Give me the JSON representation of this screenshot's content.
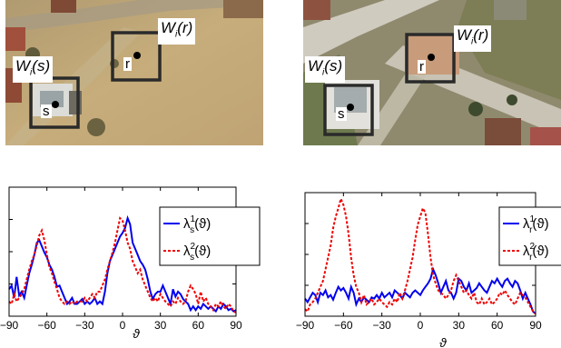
{
  "images": [
    {
      "window_labels": {
        "r": "W",
        "r_sub": "i",
        "r_arg": "(r)",
        "s": "W",
        "s_sub": "i",
        "s_arg": "(s)"
      },
      "points": {
        "r": "r",
        "s": "s"
      }
    },
    {
      "window_labels": {
        "r": "W",
        "r_sub": "i",
        "r_arg": "(r)",
        "s": "W",
        "s_sub": "i",
        "s_arg": "(s)"
      },
      "points": {
        "r": "r",
        "s": "s"
      }
    }
  ],
  "chart_data": [
    {
      "type": "line",
      "xlabel": "ϑ",
      "xlim": [
        -90,
        90
      ],
      "ylim": [
        0,
        1
      ],
      "x_ticks": [
        "−90",
        "−60",
        "−30",
        "0",
        "30",
        "60",
        "90"
      ],
      "x_tick_values": [
        -90,
        -60,
        -30,
        0,
        30,
        60,
        90
      ],
      "legend_position": "top-right",
      "series": [
        {
          "name": "λs1(ϑ)",
          "legend_base": "λ",
          "legend_sub": "s",
          "legend_sup": "1",
          "legend_arg": "(ϑ)",
          "color": "#0000ee",
          "style": "solid",
          "x": [
            -90,
            -88,
            -86,
            -84,
            -82,
            -80,
            -78,
            -76,
            -74,
            -72,
            -70,
            -68,
            -66,
            -64,
            -62,
            -60,
            -58,
            -56,
            -54,
            -52,
            -50,
            -48,
            -46,
            -44,
            -42,
            -40,
            -38,
            -36,
            -34,
            -32,
            -30,
            -28,
            -26,
            -24,
            -22,
            -20,
            -18,
            -16,
            -14,
            -12,
            -10,
            -8,
            -6,
            -4,
            -2,
            0,
            2,
            4,
            6,
            8,
            10,
            12,
            14,
            16,
            18,
            20,
            22,
            24,
            26,
            28,
            30,
            32,
            34,
            36,
            38,
            40,
            42,
            44,
            46,
            48,
            50,
            52,
            54,
            56,
            58,
            60,
            62,
            64,
            66,
            68,
            70,
            72,
            74,
            76,
            78,
            80,
            82,
            84,
            86,
            88,
            90
          ],
          "y": [
            0.22,
            0.25,
            0.15,
            0.32,
            0.17,
            0.2,
            0.15,
            0.25,
            0.35,
            0.42,
            0.5,
            0.6,
            0.62,
            0.57,
            0.52,
            0.48,
            0.42,
            0.38,
            0.32,
            0.24,
            0.25,
            0.2,
            0.15,
            0.1,
            0.12,
            0.15,
            0.1,
            0.1,
            0.12,
            0.14,
            0.1,
            0.12,
            0.1,
            0.12,
            0.15,
            0.1,
            0.12,
            0.1,
            0.2,
            0.35,
            0.45,
            0.5,
            0.55,
            0.6,
            0.65,
            0.68,
            0.72,
            0.8,
            0.75,
            0.6,
            0.55,
            0.5,
            0.45,
            0.42,
            0.38,
            0.3,
            0.2,
            0.14,
            0.18,
            0.2,
            0.2,
            0.25,
            0.2,
            0.15,
            0.1,
            0.22,
            0.16,
            0.2,
            0.18,
            0.14,
            0.12,
            0.1,
            0.05,
            0.08,
            0.05,
            0.08,
            0.06,
            0.1,
            0.08,
            0.06,
            0.08,
            0.06,
            0.04,
            0.08,
            0.06,
            0.1,
            0.08,
            0.05,
            0.06,
            0.04,
            0.05
          ]
        },
        {
          "name": "λs2(ϑ)",
          "legend_base": "λ",
          "legend_sub": "s",
          "legend_sup": "2",
          "legend_arg": "(ϑ)",
          "color": "#ee0000",
          "style": "dotted",
          "x": [
            -90,
            -88,
            -86,
            -84,
            -82,
            -80,
            -78,
            -76,
            -74,
            -72,
            -70,
            -68,
            -66,
            -64,
            -62,
            -60,
            -58,
            -56,
            -54,
            -52,
            -50,
            -48,
            -46,
            -44,
            -42,
            -40,
            -38,
            -36,
            -34,
            -32,
            -30,
            -28,
            -26,
            -24,
            -22,
            -20,
            -18,
            -16,
            -14,
            -12,
            -10,
            -8,
            -6,
            -4,
            -2,
            0,
            2,
            4,
            6,
            8,
            10,
            12,
            14,
            16,
            18,
            20,
            22,
            24,
            26,
            28,
            30,
            32,
            34,
            36,
            38,
            40,
            42,
            44,
            46,
            48,
            50,
            52,
            54,
            56,
            58,
            60,
            62,
            64,
            66,
            68,
            70,
            72,
            74,
            76,
            78,
            80,
            82,
            84,
            86,
            88,
            90
          ],
          "y": [
            0.12,
            0.1,
            0.18,
            0.12,
            0.15,
            0.18,
            0.22,
            0.3,
            0.38,
            0.45,
            0.5,
            0.58,
            0.66,
            0.7,
            0.62,
            0.5,
            0.4,
            0.35,
            0.28,
            0.22,
            0.15,
            0.12,
            0.1,
            0.12,
            0.1,
            0.12,
            0.1,
            0.12,
            0.12,
            0.12,
            0.15,
            0.12,
            0.15,
            0.18,
            0.15,
            0.2,
            0.2,
            0.25,
            0.3,
            0.38,
            0.45,
            0.52,
            0.6,
            0.7,
            0.8,
            0.78,
            0.7,
            0.6,
            0.55,
            0.45,
            0.4,
            0.35,
            0.38,
            0.3,
            0.25,
            0.2,
            0.15,
            0.12,
            0.15,
            0.12,
            0.18,
            0.15,
            0.12,
            0.1,
            0.08,
            0.12,
            0.1,
            0.15,
            0.12,
            0.1,
            0.12,
            0.2,
            0.25,
            0.22,
            0.18,
            0.1,
            0.2,
            0.12,
            0.15,
            0.1,
            0.08,
            0.05,
            0.1,
            0.08,
            0.12,
            0.08,
            0.06,
            0.1,
            0.08,
            0.04,
            0.03
          ]
        }
      ]
    },
    {
      "type": "line",
      "xlabel": "ϑ",
      "xlim": [
        -90,
        90
      ],
      "ylim": [
        0,
        1
      ],
      "x_ticks": [
        "−90",
        "−60",
        "−30",
        "0",
        "30",
        "60",
        "90"
      ],
      "x_tick_values": [
        -90,
        -60,
        -30,
        0,
        30,
        60,
        90
      ],
      "legend_position": "top-right",
      "series": [
        {
          "name": "λr1(ϑ)",
          "legend_base": "λ",
          "legend_sub": "r",
          "legend_sup": "1",
          "legend_arg": "(ϑ)",
          "color": "#0000ee",
          "style": "solid",
          "x": [
            -90,
            -88,
            -86,
            -84,
            -82,
            -80,
            -78,
            -76,
            -74,
            -72,
            -70,
            -68,
            -66,
            -64,
            -62,
            -60,
            -58,
            -56,
            -54,
            -52,
            -50,
            -48,
            -46,
            -44,
            -42,
            -40,
            -38,
            -36,
            -34,
            -32,
            -30,
            -28,
            -26,
            -24,
            -22,
            -20,
            -18,
            -16,
            -14,
            -12,
            -10,
            -8,
            -6,
            -4,
            -2,
            0,
            2,
            4,
            6,
            8,
            10,
            12,
            14,
            16,
            18,
            20,
            22,
            24,
            26,
            28,
            30,
            32,
            34,
            36,
            38,
            40,
            42,
            44,
            46,
            48,
            50,
            52,
            54,
            56,
            58,
            60,
            62,
            64,
            66,
            68,
            70,
            72,
            74,
            76,
            78,
            80,
            82,
            84,
            86,
            88,
            90
          ],
          "y": [
            0.15,
            0.12,
            0.16,
            0.2,
            0.18,
            0.12,
            0.2,
            0.18,
            0.22,
            0.16,
            0.18,
            0.14,
            0.2,
            0.25,
            0.22,
            0.24,
            0.2,
            0.15,
            0.25,
            0.2,
            0.1,
            0.15,
            0.12,
            0.16,
            0.14,
            0.12,
            0.16,
            0.15,
            0.18,
            0.15,
            0.2,
            0.16,
            0.18,
            0.2,
            0.16,
            0.22,
            0.2,
            0.18,
            0.15,
            0.2,
            0.18,
            0.16,
            0.2,
            0.22,
            0.2,
            0.18,
            0.22,
            0.25,
            0.28,
            0.32,
            0.4,
            0.35,
            0.28,
            0.2,
            0.25,
            0.3,
            0.22,
            0.2,
            0.15,
            0.2,
            0.32,
            0.3,
            0.25,
            0.22,
            0.28,
            0.2,
            0.22,
            0.24,
            0.28,
            0.25,
            0.22,
            0.2,
            0.25,
            0.3,
            0.28,
            0.32,
            0.28,
            0.25,
            0.3,
            0.32,
            0.28,
            0.25,
            0.3,
            0.28,
            0.22,
            0.15,
            0.2,
            0.15,
            0.1,
            0.04,
            0.02
          ]
        },
        {
          "name": "λr2(ϑ)",
          "legend_base": "λ",
          "legend_sub": "r",
          "legend_sup": "2",
          "legend_arg": "(ϑ)",
          "color": "#ee0000",
          "style": "dotted",
          "x": [
            -90,
            -88,
            -86,
            -84,
            -82,
            -80,
            -78,
            -76,
            -74,
            -72,
            -70,
            -68,
            -66,
            -64,
            -62,
            -60,
            -58,
            -56,
            -54,
            -52,
            -50,
            -48,
            -46,
            -44,
            -42,
            -40,
            -38,
            -36,
            -34,
            -32,
            -30,
            -28,
            -26,
            -24,
            -22,
            -20,
            -18,
            -16,
            -14,
            -12,
            -10,
            -8,
            -6,
            -4,
            -2,
            0,
            2,
            4,
            6,
            8,
            10,
            12,
            14,
            16,
            18,
            20,
            22,
            24,
            26,
            28,
            30,
            32,
            34,
            36,
            38,
            40,
            42,
            44,
            46,
            48,
            50,
            52,
            54,
            56,
            58,
            60,
            62,
            64,
            66,
            68,
            70,
            72,
            74,
            76,
            78,
            80,
            82,
            84,
            86,
            88,
            90
          ],
          "y": [
            0.06,
            0.04,
            0.1,
            0.12,
            0.15,
            0.2,
            0.25,
            0.3,
            0.4,
            0.5,
            0.6,
            0.75,
            0.85,
            0.92,
            1.0,
            0.95,
            0.85,
            0.7,
            0.5,
            0.35,
            0.25,
            0.2,
            0.12,
            0.18,
            0.1,
            0.12,
            0.15,
            0.1,
            0.12,
            0.15,
            0.12,
            0.1,
            0.08,
            0.12,
            0.1,
            0.15,
            0.12,
            0.2,
            0.15,
            0.22,
            0.3,
            0.4,
            0.5,
            0.65,
            0.78,
            0.85,
            0.92,
            0.88,
            0.7,
            0.5,
            0.35,
            0.28,
            0.22,
            0.2,
            0.18,
            0.15,
            0.18,
            0.22,
            0.3,
            0.35,
            0.3,
            0.25,
            0.2,
            0.22,
            0.18,
            0.15,
            0.2,
            0.12,
            0.1,
            0.15,
            0.1,
            0.12,
            0.15,
            0.1,
            0.12,
            0.15,
            0.2,
            0.18,
            0.22,
            0.18,
            0.15,
            0.12,
            0.1,
            0.15,
            0.2,
            0.18,
            0.16,
            0.12,
            0.08,
            0.04,
            0.02
          ]
        }
      ]
    }
  ]
}
